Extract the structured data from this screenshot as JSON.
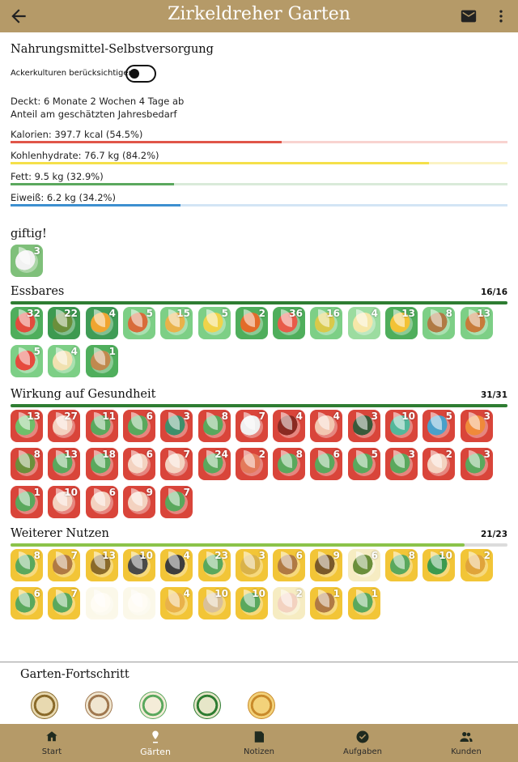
{
  "app": {
    "title": "Zirkeldreher Garten",
    "back_icon": "arrow-left-icon",
    "mail_icon": "mail-icon",
    "more_icon": "more-vert-icon",
    "bar_color": "#b59a68"
  },
  "nutrition": {
    "heading": "Nahrungsmittel-Selbstversorgung",
    "toggle_label": "Ackerkulturen berücksichtigen",
    "toggle_on": false,
    "covers": "Deckt: 6 Monate 2 Wochen 4 Tage ab",
    "share": "Anteil am geschätzten Jahresbedarf",
    "nutrients": [
      {
        "label": "Kalorien: 397.7 kcal (54.5%)",
        "percent": 54.5,
        "color": "#e05548",
        "track": "#f8d3d0"
      },
      {
        "label": "Kohlenhydrate: 76.7 kg (84.2%)",
        "percent": 84.2,
        "color": "#f5e04a",
        "track": "#fbf3c4"
      },
      {
        "label": "Fett: 9.5 kg (32.9%)",
        "percent": 32.9,
        "color": "#5aa85d",
        "track": "#d9ead9"
      },
      {
        "label": "Eiweiß: 6.2 kg (34.2%)",
        "percent": 34.2,
        "color": "#3d8fd0",
        "track": "#d3e5f5"
      }
    ]
  },
  "sections": [
    {
      "title": "giftig!",
      "count": "",
      "progress": null,
      "bar_color": "",
      "tiles": [
        {
          "n": "3",
          "c1": "#7fc07a",
          "c2": "#f2f2f2",
          "icon": "skull-icon"
        }
      ]
    },
    {
      "title": "Essbares",
      "count": "16/16",
      "progress": 1.0,
      "bar_color": "#2e7d32",
      "tiles": [
        {
          "n": "32",
          "c1": "#4fae5c",
          "c2": "#e34b3d",
          "icon": "fruit-icon"
        },
        {
          "n": "22",
          "c1": "#3d9a50",
          "c2": "#6b8f3b",
          "icon": "vegetables-icon"
        },
        {
          "n": "4",
          "c1": "#3f9c56",
          "c2": "#f0a531",
          "icon": "oil-bottle-icon"
        },
        {
          "n": "5",
          "c1": "#7dcf86",
          "c2": "#d86b3b",
          "icon": "soup-icon"
        },
        {
          "n": "15",
          "c1": "#7dcf86",
          "c2": "#e9b24a",
          "icon": "salad-bowl-icon"
        },
        {
          "n": "5",
          "c1": "#7dcf86",
          "c2": "#f0d34a",
          "icon": "flower-icon"
        },
        {
          "n": "2",
          "c1": "#4fae5c",
          "c2": "#e26b2a",
          "icon": "root-vegetable-icon"
        },
        {
          "n": "36",
          "c1": "#4fae5c",
          "c2": "#e85b4a",
          "icon": "salad-icon"
        },
        {
          "n": "16",
          "c1": "#7dcf86",
          "c2": "#d9c94a",
          "icon": "bowl-icon"
        },
        {
          "n": "4",
          "c1": "#9cdca0",
          "c2": "#f6e7a8",
          "icon": "bread-icon"
        },
        {
          "n": "13",
          "c1": "#4fae5c",
          "c2": "#f3c236",
          "icon": "lemon-icon"
        },
        {
          "n": "8",
          "c1": "#7dcf86",
          "c2": "#b07a44",
          "icon": "nuts-icon"
        },
        {
          "n": "13",
          "c1": "#7dcf86",
          "c2": "#c77b3a",
          "icon": "basket-icon"
        },
        {
          "n": "5",
          "c1": "#7dcf86",
          "c2": "#e64a3d",
          "icon": "berries-icon"
        },
        {
          "n": "4",
          "c1": "#7dcf86",
          "c2": "#f1e1b0",
          "icon": "sugar-icon"
        },
        {
          "n": "1",
          "c1": "#4fae5c",
          "c2": "#c0894e",
          "icon": "tea-cup-icon"
        }
      ]
    },
    {
      "title": "Wirkung auf Gesundheit",
      "count": "31/31",
      "progress": 1.0,
      "bar_color": "#2e7d32",
      "tiles": [
        {
          "n": "13",
          "c1": "#d9453a",
          "c2": "#6fbf6a",
          "icon": "herb-icon"
        },
        {
          "n": "27",
          "c1": "#d9453a",
          "c2": "#f3d2c0",
          "icon": "body-icon"
        },
        {
          "n": "11",
          "c1": "#d9453a",
          "c2": "#5aa85d",
          "icon": "leaves-icon"
        },
        {
          "n": "6",
          "c1": "#d9453a",
          "c2": "#5aa85d",
          "icon": "leaf-icon"
        },
        {
          "n": "3",
          "c1": "#d9453a",
          "c2": "#3e8f6b",
          "icon": "lungs-icon"
        },
        {
          "n": "8",
          "c1": "#d9453a",
          "c2": "#5aa85d",
          "icon": "plant-icon"
        },
        {
          "n": "7",
          "c1": "#d9453a",
          "c2": "#f0f0f0",
          "icon": "stethoscope-icon"
        },
        {
          "n": "4",
          "c1": "#d9453a",
          "c2": "#8a2a22",
          "icon": "heart-icon"
        },
        {
          "n": "4",
          "c1": "#d9453a",
          "c2": "#f2c6b0",
          "icon": "spa-icon"
        },
        {
          "n": "3",
          "c1": "#d9453a",
          "c2": "#3a5a3a",
          "icon": "spider-icon"
        },
        {
          "n": "10",
          "c1": "#d9453a",
          "c2": "#53b79a",
          "icon": "face-icon"
        },
        {
          "n": "5",
          "c1": "#d9453a",
          "c2": "#4aa0c9",
          "icon": "flame-icon"
        },
        {
          "n": "3",
          "c1": "#d9453a",
          "c2": "#f08a3a",
          "icon": "fire-icon"
        },
        {
          "n": "8",
          "c1": "#d9453a",
          "c2": "#6b8f3b",
          "icon": "meat-icon"
        },
        {
          "n": "13",
          "c1": "#d9453a",
          "c2": "#5aa85d",
          "icon": "spine-icon"
        },
        {
          "n": "18",
          "c1": "#d9453a",
          "c2": "#5aa85d",
          "icon": "herbs-icon"
        },
        {
          "n": "6",
          "c1": "#d9453a",
          "c2": "#f3d2c0",
          "icon": "eye-icon"
        },
        {
          "n": "7",
          "c1": "#d9453a",
          "c2": "#f3d2c0",
          "icon": "head-icon"
        },
        {
          "n": "24",
          "c1": "#d9453a",
          "c2": "#5aa85d",
          "icon": "leaf-sprig-icon"
        },
        {
          "n": "2",
          "c1": "#d9453a",
          "c2": "#e37a5a",
          "icon": "organ-icon"
        },
        {
          "n": "8",
          "c1": "#d9453a",
          "c2": "#5aa85d",
          "icon": "eye-leaf-icon"
        },
        {
          "n": "6",
          "c1": "#d9453a",
          "c2": "#5aa85d",
          "icon": "bloom-icon"
        },
        {
          "n": "5",
          "c1": "#d9453a",
          "c2": "#5aa85d",
          "icon": "vine-icon"
        },
        {
          "n": "3",
          "c1": "#d9453a",
          "c2": "#5aa85d",
          "icon": "syringe-icon"
        },
        {
          "n": "2",
          "c1": "#d9453a",
          "c2": "#f3d2c0",
          "icon": "hands-icon"
        },
        {
          "n": "3",
          "c1": "#d9453a",
          "c2": "#5aa85d",
          "icon": "cross-icon"
        },
        {
          "n": "1",
          "c1": "#d9453a",
          "c2": "#5aa85d",
          "icon": "pot-plant-icon"
        },
        {
          "n": "10",
          "c1": "#d9453a",
          "c2": "#f3d2c0",
          "icon": "flowers-icon"
        },
        {
          "n": "6",
          "c1": "#d9453a",
          "c2": "#f3d2c0",
          "icon": "first-aid-icon"
        },
        {
          "n": "9",
          "c1": "#d9453a",
          "c2": "#f3d2c0",
          "icon": "uterus-icon"
        },
        {
          "n": "7",
          "c1": "#d9453a",
          "c2": "#5aa85d",
          "icon": "woman-icon"
        }
      ]
    },
    {
      "title": "Weiterer Nutzen",
      "count": "21/23",
      "progress": 0.913,
      "bar_color": "#8bc34a",
      "tiles": [
        {
          "n": "8",
          "c1": "#f2c537",
          "c2": "#5aa85d",
          "icon": "garden-icon"
        },
        {
          "n": "7",
          "c1": "#f2c537",
          "c2": "#b07a44",
          "icon": "tools-icon"
        },
        {
          "n": "13",
          "c1": "#f2c537",
          "c2": "#8a6a2a",
          "icon": "tower-icon"
        },
        {
          "n": "10",
          "c1": "#f2c537",
          "c2": "#4a4a4a",
          "icon": "bee-icon"
        },
        {
          "n": "4",
          "c1": "#f2c537",
          "c2": "#3d3d3d",
          "icon": "bird-icon"
        },
        {
          "n": "23",
          "c1": "#f2c537",
          "c2": "#5aa85d",
          "icon": "seedling-icon"
        },
        {
          "n": "3",
          "c1": "#f2c537",
          "c2": "#d9b24a",
          "icon": "spiral-icon"
        },
        {
          "n": "6",
          "c1": "#f2c537",
          "c2": "#b07a44",
          "icon": "wheat-icon"
        },
        {
          "n": "9",
          "c1": "#f2c537",
          "c2": "#7a5a2a",
          "icon": "shovel-icon"
        },
        {
          "n": "6",
          "c1": "#f6ecc2",
          "c2": "#6b8f3b",
          "icon": "twig-icon"
        },
        {
          "n": "8",
          "c1": "#f2c537",
          "c2": "#5aa85d",
          "icon": "tree-icon"
        },
        {
          "n": "10",
          "c1": "#f2c537",
          "c2": "#3d9a50",
          "icon": "forest-icon"
        },
        {
          "n": "2",
          "c1": "#f2c537",
          "c2": "#e0a43a",
          "icon": "sun-icon"
        },
        {
          "n": "6",
          "c1": "#f2c537",
          "c2": "#5aa85d",
          "icon": "pickaxe-icon"
        },
        {
          "n": "7",
          "c1": "#f2c537",
          "c2": "#5aa85d",
          "icon": "sprout-icon"
        },
        {
          "n": "",
          "c1": "#f6ecc2",
          "c2": "#fff8e1",
          "icon": "bowl-faded-icon",
          "faded": true
        },
        {
          "n": "",
          "c1": "#f6ecc2",
          "c2": "#fff8e1",
          "icon": "cup-faded-icon",
          "faded": true
        },
        {
          "n": "4",
          "c1": "#f2c537",
          "c2": "#e9b24a",
          "icon": "vase-icon"
        },
        {
          "n": "10",
          "c1": "#f2c537",
          "c2": "#d9c09a",
          "icon": "bathtub-icon"
        },
        {
          "n": "10",
          "c1": "#f2c537",
          "c2": "#5aa85d",
          "icon": "cabin-icon"
        },
        {
          "n": "2",
          "c1": "#f6ecc2",
          "c2": "#f3d2c0",
          "icon": "mask-icon"
        },
        {
          "n": "1",
          "c1": "#f2c537",
          "c2": "#b07a44",
          "icon": "pyramid-icon"
        },
        {
          "n": "1",
          "c1": "#f2c537",
          "c2": "#5aa85d",
          "icon": "plant-pot-icon"
        }
      ]
    }
  ],
  "garden_progress": {
    "title": "Garten-Fortschritt",
    "badges": [
      {
        "icon": "badge-seed-icon",
        "c1": "#e8d9b0",
        "c2": "#8a6a2a"
      },
      {
        "icon": "badge-crest-icon",
        "c1": "#f0e6d0",
        "c2": "#a07850"
      },
      {
        "icon": "badge-wreath-icon",
        "c1": "#f4ecd8",
        "c2": "#5aa85d"
      },
      {
        "icon": "badge-landscape-icon",
        "c1": "#e6e6c8",
        "c2": "#2e7d32"
      },
      {
        "icon": "badge-gold-icon",
        "c1": "#f3d27a",
        "c2": "#c98a2a"
      }
    ]
  },
  "bottom_nav": [
    {
      "label": "Start",
      "icon": "home-icon",
      "active": false
    },
    {
      "label": "Gärten",
      "icon": "garden-pin-icon",
      "active": true
    },
    {
      "label": "Notizen",
      "icon": "notes-icon",
      "active": false
    },
    {
      "label": "Aufgaben",
      "icon": "task-check-icon",
      "active": false
    },
    {
      "label": "Kunden",
      "icon": "people-icon",
      "active": false
    }
  ]
}
